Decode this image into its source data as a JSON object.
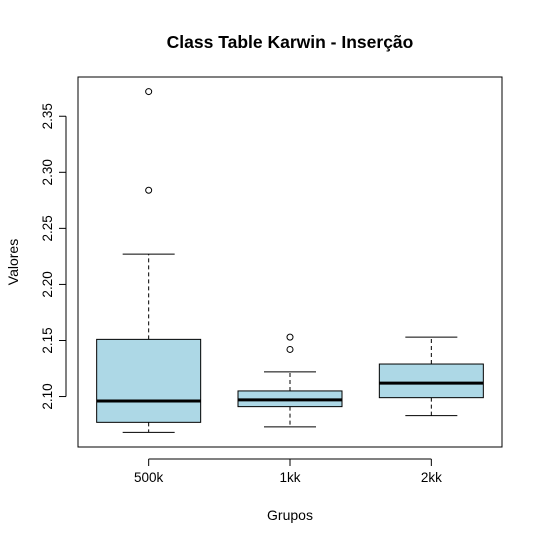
{
  "chart_data": {
    "type": "boxplot",
    "title": "Class Table Karwin - Inserção",
    "xlabel": "Grupos",
    "ylabel": "Valores",
    "categories": [
      "500k",
      "1kk",
      "2kk"
    ],
    "ylim": [
      2.055,
      2.385
    ],
    "yticks": [
      2.1,
      2.15,
      2.2,
      2.25,
      2.3,
      2.35
    ],
    "ytick_labels": [
      "2.10",
      "2.15",
      "2.20",
      "2.25",
      "2.30",
      "2.35"
    ],
    "grid": false,
    "legend": "none",
    "box_color": "#add8e6",
    "series": [
      {
        "category": "500k",
        "whisker_low": 2.068,
        "q1": 2.077,
        "median": 2.096,
        "q3": 2.151,
        "whisker_high": 2.227,
        "outliers": [
          2.284,
          2.372
        ]
      },
      {
        "category": "1kk",
        "whisker_low": 2.073,
        "q1": 2.091,
        "median": 2.097,
        "q3": 2.105,
        "whisker_high": 2.122,
        "outliers": [
          2.142,
          2.153
        ]
      },
      {
        "category": "2kk",
        "whisker_low": 2.083,
        "q1": 2.099,
        "median": 2.112,
        "q3": 2.129,
        "whisker_high": 2.153,
        "outliers": []
      }
    ]
  }
}
